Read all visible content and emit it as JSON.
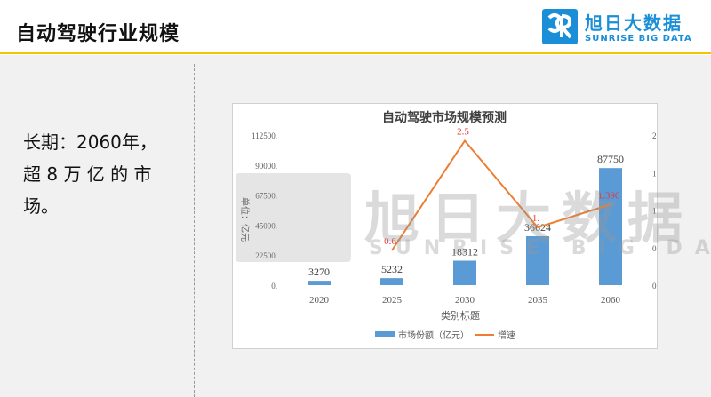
{
  "header": {
    "title": "自动驾驶行业规模",
    "logo_name": "旭日大数据",
    "logo_sub": "SUNRISE BIG DATA"
  },
  "note": {
    "lines": [
      "长期：2060年，",
      "超 8 万 亿 的 市",
      "场。"
    ]
  },
  "watermark": {
    "name": "旭日大数据",
    "sub": "SUNRISE BIG DATA"
  },
  "colors": {
    "accent": "#f5c400",
    "brand": "#1a8fd8",
    "bar": "#5b9bd5",
    "line": "#ed7d31",
    "line_label": "#e0383e"
  },
  "chart_data": {
    "type": "bar",
    "title": "自动驾驶市场规模预测",
    "xlabel": "类别标题",
    "ylabel": "单位：亿元",
    "categories": [
      "2020",
      "2025",
      "2030",
      "2035",
      "2060"
    ],
    "ylim": [
      0,
      112500
    ],
    "y2lim": [
      0,
      2.6
    ],
    "yticks": [
      "0.",
      "22500.",
      "45000.",
      "67500.",
      "90000.",
      "112500."
    ],
    "y2ticks": [
      "0.",
      "0.65",
      "1.3",
      "1.95",
      "2.6"
    ],
    "series": [
      {
        "name": "市场份额（亿元）",
        "kind": "bar",
        "axis": "left",
        "values": [
          3270,
          5232,
          18312,
          36624,
          87750
        ],
        "labels": [
          "3270",
          "5232",
          "18312",
          "36624",
          "87750"
        ]
      },
      {
        "name": "增速",
        "kind": "line",
        "axis": "right",
        "values": [
          null,
          0.6,
          2.5,
          1.0,
          1.396
        ],
        "labels": [
          "",
          "0.6",
          "2.5",
          "1.",
          "1.396"
        ]
      }
    ],
    "legend": "bottom",
    "grid": false
  }
}
